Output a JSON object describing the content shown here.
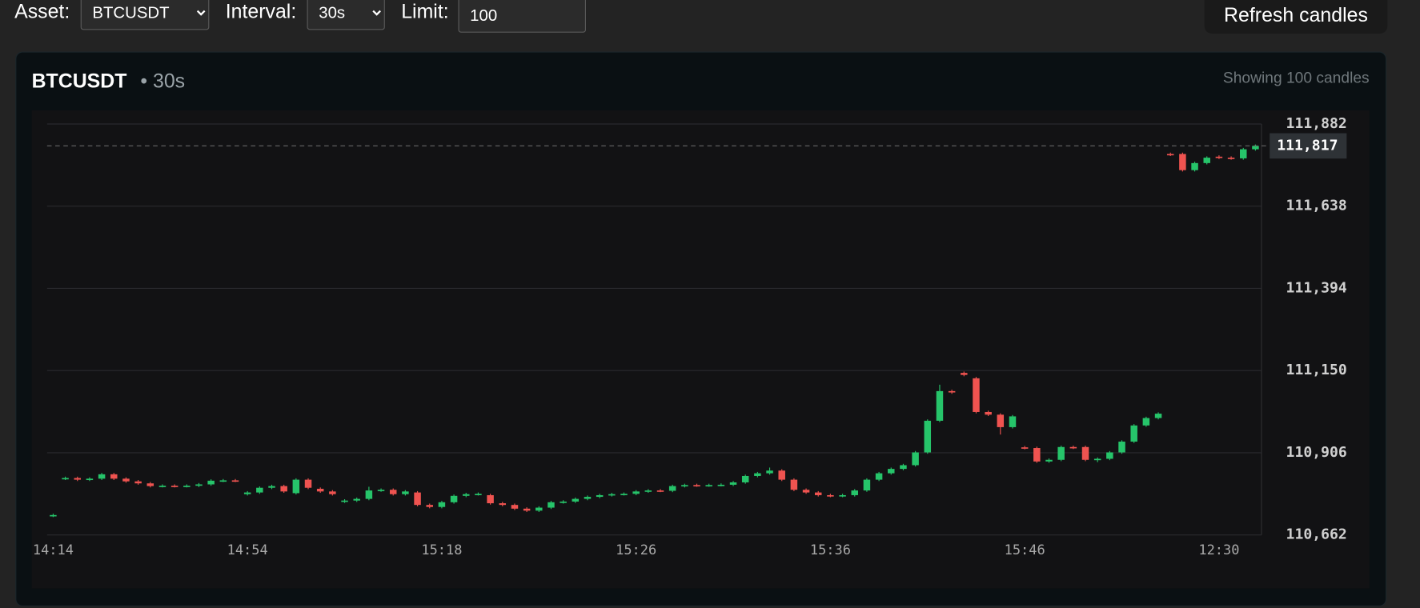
{
  "controls": {
    "asset_label": "Asset:",
    "asset": "BTCUSDT",
    "interval_label": "Interval:",
    "interval": "30s",
    "limit_label": "Limit:",
    "limit": "100",
    "refresh": "Refresh candles"
  },
  "panel": {
    "symbol": "BTCUSDT",
    "interval": "• 30s",
    "status": "Showing 100 candles"
  },
  "chart_data": {
    "type": "candlestick",
    "categories": [
      "14:14",
      null,
      null,
      null,
      null,
      null,
      null,
      null,
      null,
      null,
      null,
      null,
      null,
      null,
      null,
      null,
      "14:54",
      null,
      null,
      null,
      null,
      null,
      null,
      null,
      null,
      null,
      null,
      null,
      null,
      null,
      null,
      null,
      "15:18",
      null,
      null,
      null,
      null,
      null,
      null,
      null,
      null,
      null,
      null,
      null,
      null,
      null,
      null,
      null,
      "15:26",
      null,
      null,
      null,
      null,
      null,
      null,
      null,
      null,
      null,
      null,
      null,
      null,
      null,
      null,
      null,
      "15:36",
      null,
      null,
      null,
      null,
      null,
      null,
      null,
      null,
      null,
      null,
      null,
      null,
      null,
      null,
      null,
      "15:46",
      null,
      null,
      null,
      null,
      null,
      null,
      null,
      null,
      null,
      null,
      null,
      null,
      null,
      null,
      null,
      "12:30",
      null,
      null,
      null
    ],
    "series": [
      {
        "open": [
          110719,
          110829,
          110831,
          110826,
          110829,
          110842,
          110829,
          110821,
          110815,
          110807,
          110808,
          110807,
          110808,
          110812,
          110823,
          110824,
          110783,
          110788,
          110802,
          110807,
          110786,
          110826,
          110799,
          110791,
          110761,
          110764,
          110769,
          110794,
          110796,
          110783,
          110788,
          110751,
          110745,
          110759,
          110778,
          110783,
          110780,
          110756,
          110751,
          110740,
          110734,
          110743,
          110759,
          110761,
          110769,
          110775,
          110780,
          110783,
          110784,
          110791,
          110794,
          110793,
          110807,
          110810,
          110809,
          110810,
          110811,
          110818,
          110837,
          110845,
          110853,
          110826,
          110796,
          110788,
          110780,
          110778,
          110780,
          110794,
          110826,
          110845,
          110858,
          110869,
          110907,
          111001,
          111089,
          111143,
          111127,
          111027,
          111019,
          110982,
          110922,
          110920,
          110880,
          110885,
          110923,
          110923,
          110885,
          110888,
          110907,
          110939,
          110987,
          111009,
          111793,
          111793,
          111745,
          111766,
          111785,
          111782,
          111780,
          111807
        ],
        "high": [
          110725,
          110835,
          110835,
          110833,
          110846,
          110846,
          110833,
          110825,
          110819,
          110812,
          110812,
          110812,
          110816,
          110827,
          110828,
          110828,
          110792,
          110806,
          110811,
          110811,
          110830,
          110830,
          110803,
          110795,
          110768,
          110773,
          110805,
          110800,
          110800,
          110795,
          110792,
          110755,
          110763,
          110782,
          110787,
          110788,
          110784,
          110760,
          110755,
          110744,
          110747,
          110763,
          110765,
          110773,
          110779,
          110784,
          110787,
          110788,
          110795,
          110798,
          110798,
          110811,
          110814,
          110814,
          110814,
          110815,
          110822,
          110841,
          110849,
          110862,
          110857,
          110830,
          110800,
          110792,
          110784,
          110784,
          110798,
          110830,
          110849,
          110862,
          110873,
          110911,
          111005,
          111108,
          111093,
          111147,
          111131,
          111031,
          111023,
          111018,
          110926,
          110924,
          110889,
          110927,
          110927,
          110927,
          110892,
          110911,
          110943,
          110991,
          111013,
          111026,
          111797,
          111797,
          111770,
          111786,
          111789,
          111786,
          111811,
          111821
        ],
        "low": [
          110715,
          110825,
          110822,
          110822,
          110825,
          110825,
          110817,
          110811,
          110803,
          110803,
          110803,
          110803,
          110804,
          110808,
          110819,
          110819,
          110779,
          110784,
          110798,
          110787,
          110782,
          110798,
          110787,
          110779,
          110757,
          110760,
          110765,
          110790,
          110779,
          110779,
          110747,
          110741,
          110741,
          110755,
          110774,
          110779,
          110752,
          110747,
          110736,
          110730,
          110730,
          110739,
          110755,
          110757,
          110765,
          110771,
          110776,
          110779,
          110780,
          110787,
          110789,
          110789,
          110803,
          110805,
          110805,
          110806,
          110807,
          110814,
          110833,
          110841,
          110822,
          110792,
          110784,
          110776,
          110774,
          110774,
          110776,
          110790,
          110822,
          110841,
          110854,
          110865,
          110903,
          110997,
          111081,
          111133,
          111023,
          111015,
          110960,
          110978,
          110916,
          110876,
          110876,
          110881,
          110917,
          110881,
          110878,
          110884,
          110903,
          110935,
          110983,
          111005,
          111787,
          111741,
          111741,
          111762,
          111778,
          111776,
          111776,
          111803
        ],
        "close": [
          110721,
          110831,
          110826,
          110829,
          110842,
          110829,
          110821,
          110815,
          110807,
          110808,
          110807,
          110808,
          110812,
          110823,
          110824,
          110823,
          110788,
          110802,
          110807,
          110791,
          110826,
          110802,
          110791,
          110783,
          110764,
          110769,
          110794,
          110796,
          110783,
          110791,
          110751,
          110745,
          110759,
          110778,
          110783,
          110784,
          110756,
          110751,
          110740,
          110734,
          110743,
          110759,
          110761,
          110769,
          110775,
          110780,
          110783,
          110784,
          110791,
          110794,
          110793,
          110807,
          110810,
          110809,
          110810,
          110811,
          110818,
          110837,
          110845,
          110853,
          110826,
          110796,
          110788,
          110780,
          110778,
          110780,
          110794,
          110826,
          110845,
          110858,
          110869,
          110907,
          111001,
          111089,
          111085,
          111137,
          111027,
          111019,
          110982,
          111014,
          110920,
          110880,
          110885,
          110923,
          110921,
          110885,
          110888,
          110907,
          110939,
          110987,
          111009,
          111022,
          111791,
          111745,
          111766,
          111782,
          111782,
          111780,
          111807,
          111817
        ]
      }
    ],
    "up_color": "#26c46a",
    "down_color": "#ef5350",
    "ylim": [
      110662,
      111882
    ],
    "yticks": [
      {
        "value": 110662,
        "label": "110,662"
      },
      {
        "value": 110906,
        "label": "110,906"
      },
      {
        "value": 111150,
        "label": "111,150"
      },
      {
        "value": 111394,
        "label": "111,394"
      },
      {
        "value": 111638,
        "label": "111,638"
      },
      {
        "value": 111882,
        "label": "111,882"
      }
    ],
    "last_price": {
      "value": 111817,
      "label": "111,817"
    },
    "grid": true
  }
}
